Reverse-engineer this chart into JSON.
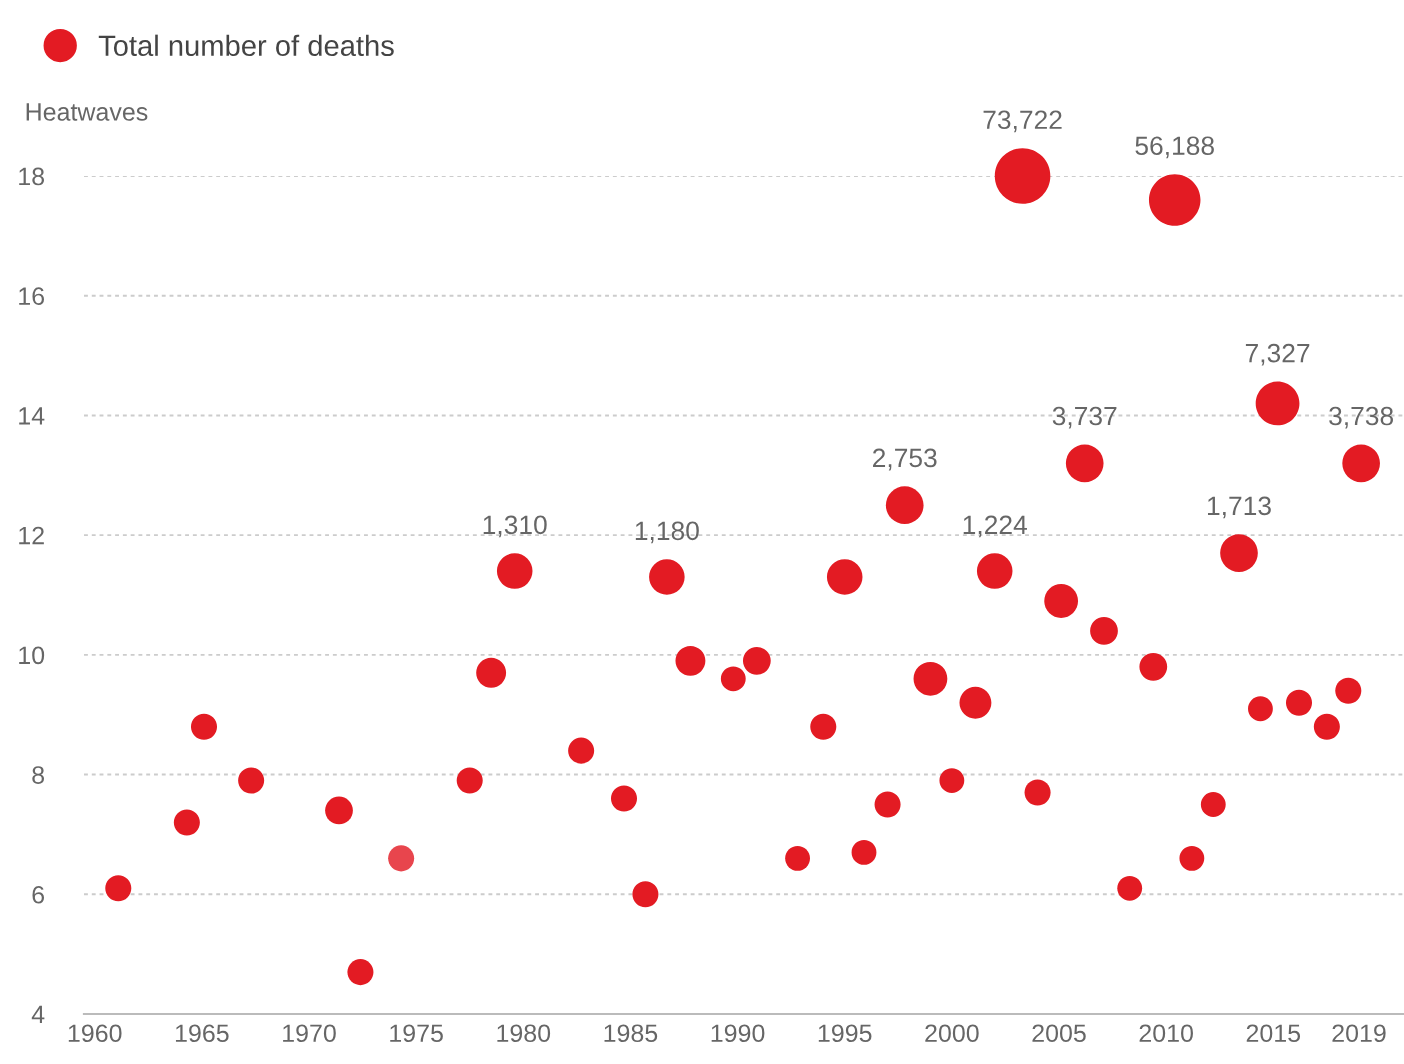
{
  "chart_data": {
    "type": "bubble",
    "ylabel": "Heatwaves",
    "x": [
      1961.1,
      1964.3,
      1965.1,
      1967.3,
      1971.4,
      1972.4,
      1974.3,
      1977.5,
      1978.5,
      1979.6,
      1982.7,
      1984.7,
      1985.7,
      1986.7,
      1987.8,
      1989.8,
      1990.9,
      1992.8,
      1994.0,
      1995.0,
      1995.9,
      1997.0,
      1997.8,
      1999.0,
      2000.0,
      2001.1,
      2002.0,
      2003.3,
      2004.0,
      2005.1,
      2006.2,
      2007.1,
      2008.3,
      2009.4,
      2010.4,
      2011.2,
      2012.2,
      2013.4,
      2014.4,
      2015.2,
      2016.2,
      2017.5,
      2018.5,
      2019.1
    ],
    "series": [
      {
        "name": "Total number of deaths",
        "color": "#e31b23",
        "values": [
          6.1,
          7.2,
          8.8,
          7.9,
          7.4,
          4.7,
          6.6,
          7.9,
          9.7,
          11.4,
          8.4,
          7.6,
          6.0,
          11.3,
          9.9,
          9.6,
          9.9,
          6.6,
          8.8,
          11.3,
          6.7,
          7.5,
          12.5,
          9.6,
          7.9,
          9.2,
          11.4,
          18.0,
          7.7,
          10.9,
          13.2,
          10.4,
          6.1,
          9.8,
          17.6,
          6.6,
          7.5,
          11.7,
          9.1,
          14.2,
          9.2,
          8.8,
          9.4,
          13.2
        ],
        "sizes": [
          0.22,
          0.22,
          0.22,
          0.22,
          0.25,
          0.22,
          0.22,
          0.22,
          0.29,
          0.41,
          0.22,
          0.22,
          0.22,
          0.41,
          0.29,
          0.2,
          0.25,
          0.2,
          0.22,
          0.41,
          0.2,
          0.22,
          0.46,
          0.37,
          0.2,
          0.33,
          0.41,
          1,
          0.22,
          0.37,
          0.46,
          0.25,
          0.2,
          0.25,
          0.86,
          0.2,
          0.2,
          0.46,
          0.2,
          0.62,
          0.22,
          0.22,
          0.22,
          0.46
        ],
        "colors": [
          "#e31b23",
          "#e31b23",
          "#e31b23",
          "#e31b23",
          "#e31b23",
          "#e31b23",
          "#e8454d",
          "#e31b23",
          "#e31b23",
          "#e31b23",
          "#e31b23",
          "#e31b23",
          "#e31b23",
          "#e31b23",
          "#e31b23",
          "#e31b23",
          "#e31b23",
          "#e31b23",
          "#e31b23",
          "#e31b23",
          "#e31b23",
          "#e31b23",
          "#e31b23",
          "#e31b23",
          "#e31b23",
          "#e31b23",
          "#e31b23",
          "#e31b23",
          "#e31b23",
          "#e31b23",
          "#e31b23",
          "#e31b23",
          "#e31b23",
          "#e31b23",
          "#e31b23",
          "#e31b23",
          "#e31b23",
          "#e31b23",
          "#e31b23",
          "#e31b23",
          "#e31b23",
          "#e31b23",
          "#e31b23",
          "#e31b23"
        ]
      }
    ],
    "annotations": [
      {
        "text": "1,310",
        "x": 1979.6,
        "y": 11.4
      },
      {
        "text": "1,180",
        "x": 1986.7,
        "y": 11.3
      },
      {
        "text": "2,753",
        "x": 1997.8,
        "y": 12.5
      },
      {
        "text": "1,224",
        "x": 2002.0,
        "y": 11.4
      },
      {
        "text": "73,722",
        "x": 2003.3,
        "y": 18.0
      },
      {
        "text": "3,737",
        "x": 2006.2,
        "y": 13.2
      },
      {
        "text": "56,188",
        "x": 2010.4,
        "y": 17.6
      },
      {
        "text": "1,713",
        "x": 2013.4,
        "y": 11.7
      },
      {
        "text": "7,327",
        "x": 2015.2,
        "y": 14.2
      },
      {
        "text": "3,738",
        "x": 2019.1,
        "y": 13.2
      }
    ],
    "xlim": [
      1959.5,
      2021.1
    ],
    "xticks": [
      1960,
      1965,
      1970,
      1975,
      1980,
      1985,
      1990,
      1995,
      2000,
      2005,
      2010,
      2015,
      2019
    ],
    "ylim": [
      4,
      18
    ],
    "yticks": [
      4,
      6,
      8,
      10,
      12,
      14,
      16,
      18
    ],
    "grid": "y",
    "legend": "top left"
  }
}
